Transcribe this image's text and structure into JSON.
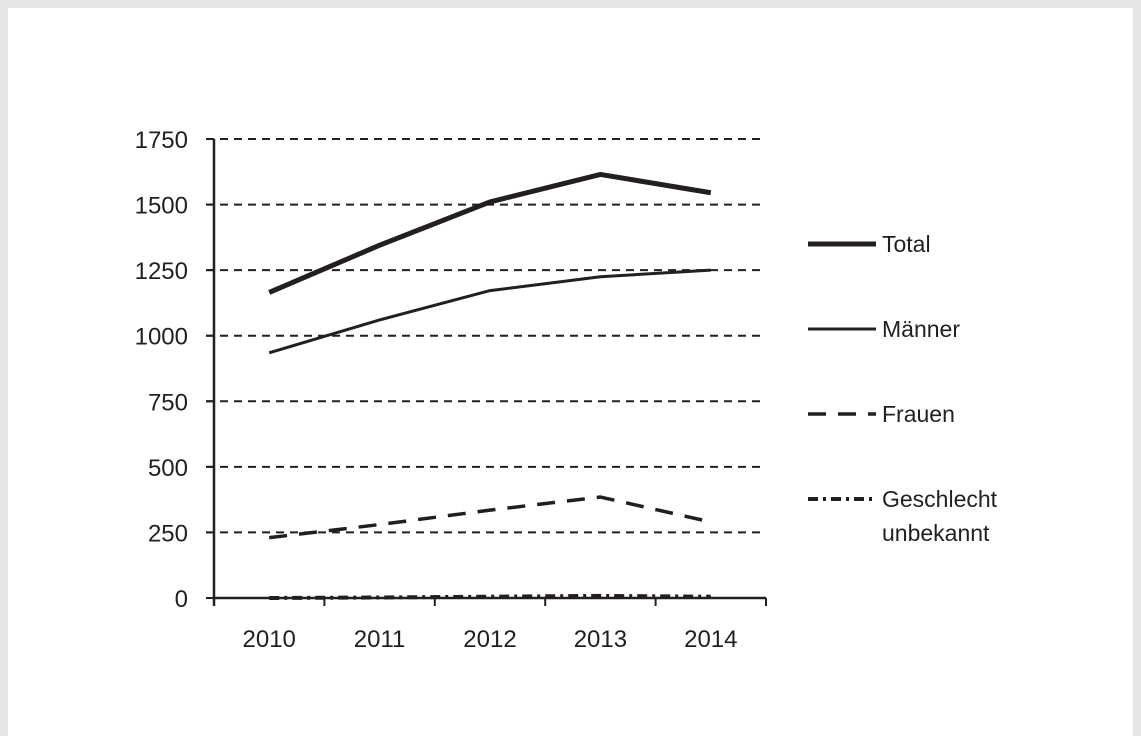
{
  "chart_data": {
    "type": "line",
    "title": "",
    "xlabel": "",
    "ylabel": "",
    "categories": [
      "2010",
      "2011",
      "2012",
      "2013",
      "2014"
    ],
    "ylim": [
      0,
      1750
    ],
    "yticks": [
      0,
      250,
      500,
      750,
      1000,
      1250,
      1500,
      1750
    ],
    "ytick_labels": [
      "0",
      "250",
      "500",
      "750",
      "1000",
      "1250",
      "1500",
      "1750"
    ],
    "grid": true,
    "legend_position": "right",
    "series": [
      {
        "name": "Total",
        "style": "thick-solid",
        "x": [
          2010,
          2011,
          2012,
          2013,
          2014
        ],
        "values": [
          1165,
          1345,
          1510,
          1615,
          1545
        ]
      },
      {
        "name": "Männer",
        "style": "solid",
        "x": [
          2010,
          2011,
          2012,
          2013,
          2014
        ],
        "values": [
          935,
          1060,
          1172,
          1225,
          1250
        ]
      },
      {
        "name": "Frauen",
        "style": "dashed",
        "x": [
          2010,
          2011,
          2012,
          2013,
          2014
        ],
        "values": [
          230,
          280,
          335,
          385,
          290
        ]
      },
      {
        "name": "Geschlecht unbekannt",
        "legend_lines": [
          "Geschlecht",
          "unbekannt"
        ],
        "style": "dash-dot",
        "x": [
          2010,
          2011,
          2012,
          2013,
          2014
        ],
        "values": [
          0,
          2,
          5,
          8,
          5
        ]
      }
    ]
  },
  "colors": {
    "line": "#231f20",
    "background": "#ffffff",
    "frame": "#e6e6e6"
  }
}
